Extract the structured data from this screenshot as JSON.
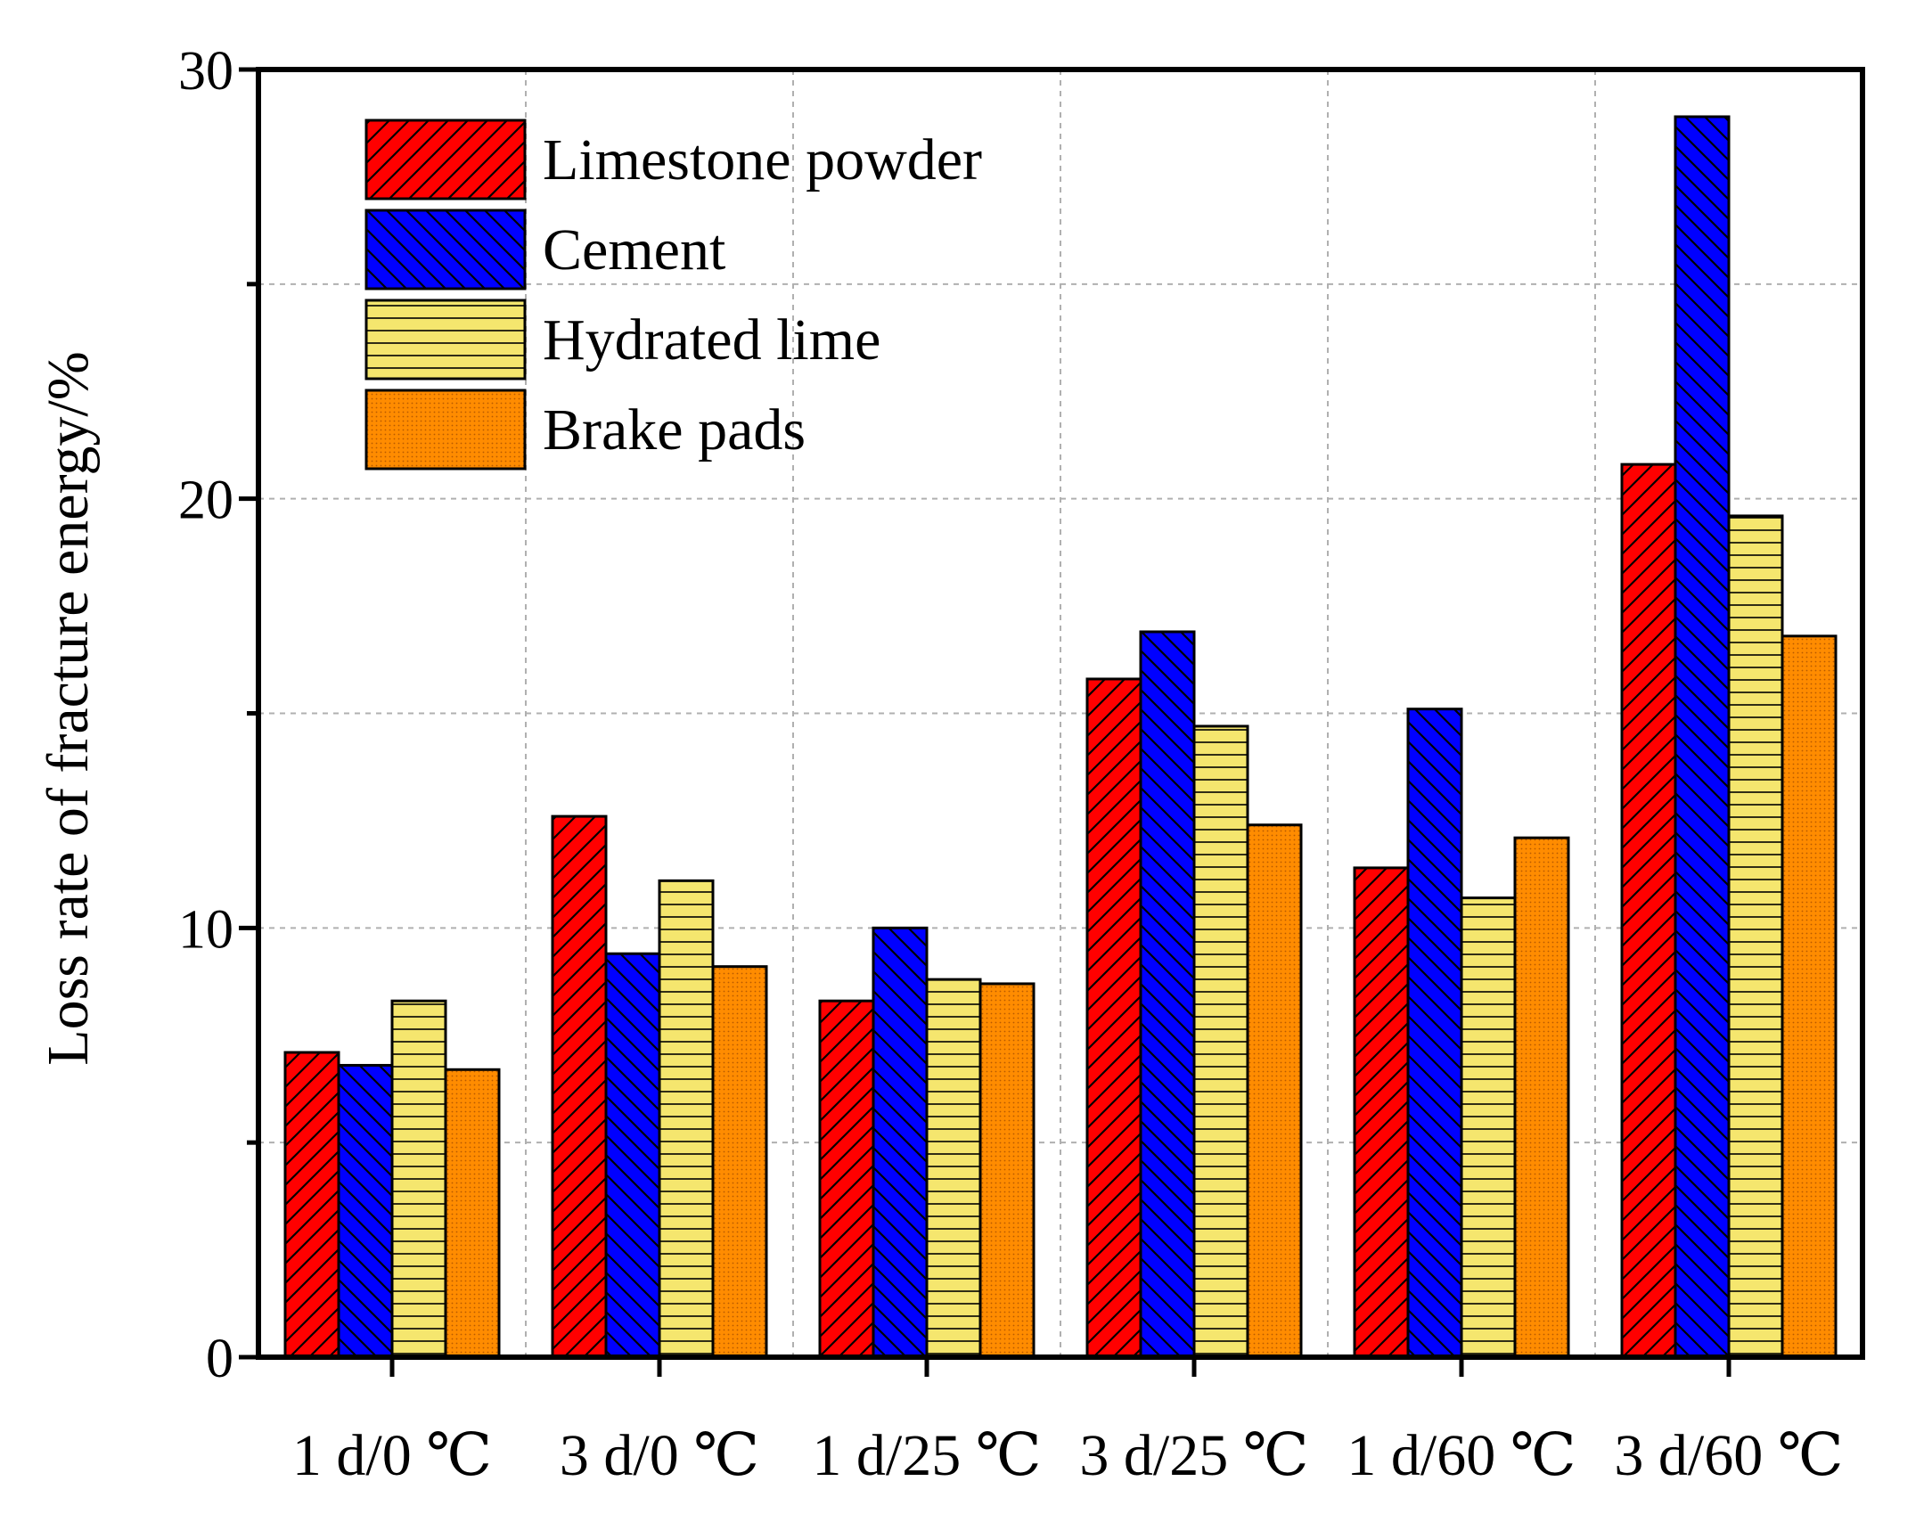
{
  "chart_data": {
    "type": "bar",
    "title": "",
    "xlabel": "",
    "ylabel": "Loss rate of fracture energy/%",
    "categories": [
      "1 d/0 ℃",
      "3 d/0 ℃",
      "1 d/25 ℃",
      "3 d/25 ℃",
      "1 d/60 ℃",
      "3 d/60 ℃"
    ],
    "series": [
      {
        "name": "Limestone powder",
        "color": "#ff0000",
        "pattern": "hatch-diagonal-up",
        "values": [
          7.1,
          12.6,
          8.3,
          15.8,
          11.4,
          20.8
        ]
      },
      {
        "name": "Cement",
        "color": "#0000ff",
        "pattern": "hatch-diagonal-down",
        "values": [
          6.8,
          9.4,
          10.0,
          16.9,
          15.1,
          28.9
        ]
      },
      {
        "name": "Hydrated lime",
        "color": "#f5e66e",
        "pattern": "hatch-horizontal",
        "values": [
          8.3,
          11.1,
          8.8,
          14.7,
          10.7,
          19.6
        ]
      },
      {
        "name": "Brake pads",
        "color": "#ff8c00",
        "pattern": "dots",
        "values": [
          6.7,
          9.1,
          8.7,
          12.4,
          12.1,
          16.8
        ]
      }
    ],
    "ylim": [
      0,
      30
    ],
    "yticks": [
      0,
      10,
      20,
      30
    ],
    "ytick_labels": [
      "0",
      "10",
      "20",
      "30"
    ],
    "grid": true,
    "legend_position": "top-left"
  }
}
